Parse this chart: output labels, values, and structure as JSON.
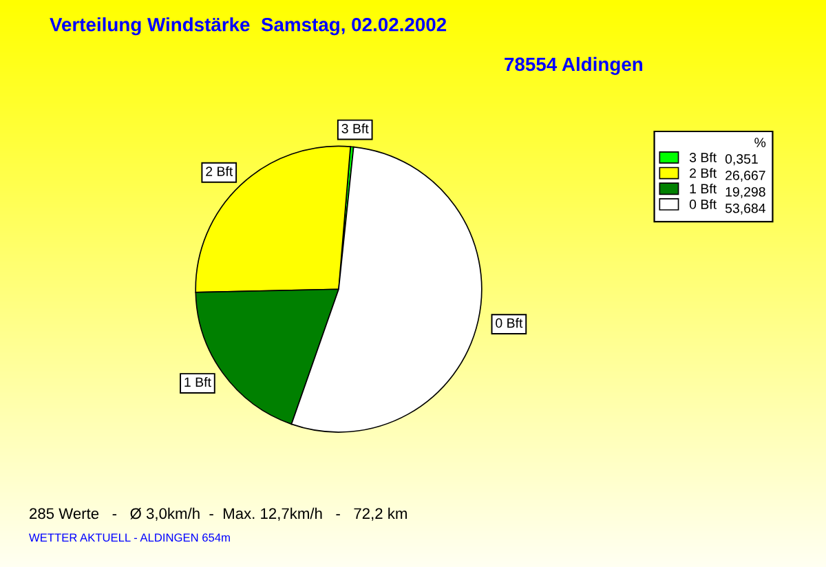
{
  "chart_data": {
    "type": "pie",
    "title": "Verteilung Windstärke  Samstag, 02.02.2002",
    "subtitle": "78554 Aldingen",
    "categories": [
      "3 Bft",
      "2 Bft",
      "1 Bft",
      "0 Bft"
    ],
    "values": [
      0.351,
      26.667,
      19.298,
      53.684
    ],
    "value_labels": [
      "0,351",
      "26,667",
      "19,298",
      "53,684"
    ],
    "colors": [
      "#00ff00",
      "#ffff00",
      "#008000",
      "#ffffff"
    ],
    "legend": "top right",
    "legend_title": "%",
    "annotations": [
      "285 Werte   -   Ø 3,0km/h  -  Max. 12,7km/h   -   72,2 km",
      "WETTER AKTUELL - ALDINGEN 654m"
    ]
  }
}
